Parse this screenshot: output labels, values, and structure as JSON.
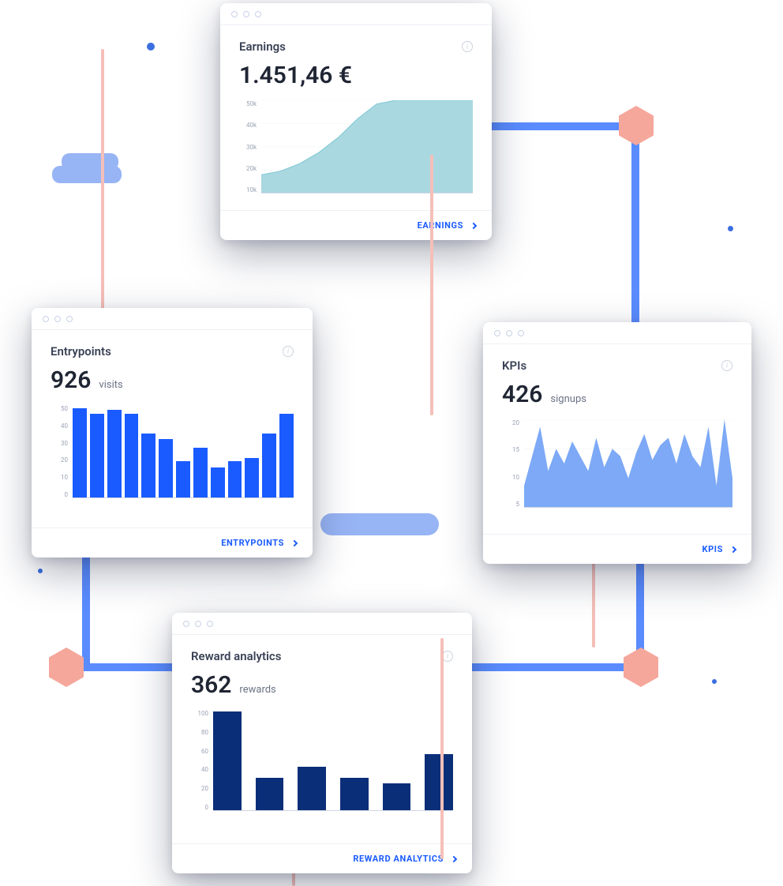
{
  "decor": {
    "connector_color": "#5a8cff",
    "pink_line_color": "#f5bfb8",
    "hex_color": "#f5a79b",
    "dot_color": "#3b6fe0",
    "pill_color": "#97b4f4"
  },
  "cards": {
    "earnings": {
      "title": "Earnings",
      "value": "1.451,46 €",
      "link_label": "EARNINGS",
      "chart": {
        "type": "area",
        "fill_color": "#a9d8e0",
        "stroke_color": "#7fc7d4",
        "background_color": "#ffffff",
        "grid_color": "#eef0f4",
        "ylabels": [
          "50k",
          "40k",
          "30k",
          "20k",
          "10k"
        ],
        "ylim": [
          0,
          50
        ],
        "points": [
          10,
          12,
          16,
          22,
          30,
          40,
          48,
          50,
          50,
          50,
          50,
          50
        ]
      }
    },
    "entrypoints": {
      "title": "Entrypoints",
      "value": "926",
      "unit": "visits",
      "link_label": "ENTRYPOINTS",
      "chart": {
        "type": "bar",
        "bar_color": "#1a5bff",
        "grid_color": "#eef0f4",
        "ylabels": [
          "50",
          "40",
          "30",
          "20",
          "10",
          "0"
        ],
        "ylim": [
          0,
          55
        ],
        "values": [
          53,
          50,
          52,
          50,
          38,
          35,
          22,
          30,
          18,
          22,
          24,
          38,
          50
        ]
      }
    },
    "kpis": {
      "title": "KPIs",
      "value": "426",
      "unit": "signups",
      "link_label": "KPIs",
      "chart": {
        "type": "area",
        "fill_color": "#6fa0f5",
        "stroke_color": "#5a8cff",
        "grid_color": "#eef0f4",
        "ylabels": [
          "20",
          "15",
          "10",
          "5"
        ],
        "ylim": [
          0,
          24
        ],
        "points": [
          6,
          14,
          22,
          10,
          16,
          12,
          18,
          14,
          10,
          19,
          11,
          16,
          14,
          8,
          15,
          20,
          13,
          17,
          19,
          12,
          20,
          14,
          11,
          22,
          6,
          24,
          8
        ]
      }
    },
    "rewards": {
      "title": "Reward analytics",
      "value": "362",
      "unit": "rewards",
      "link_label": "REWARD ANALYTICS",
      "chart": {
        "type": "bar",
        "bar_color": "#0b2e78",
        "grid_color": "#eef0f4",
        "ylabels": [
          "100",
          "80",
          "60",
          "40",
          "20",
          "0"
        ],
        "ylim": [
          0,
          110
        ],
        "values": [
          108,
          36,
          48,
          36,
          30,
          62
        ],
        "bar_gap_ratio": 0.35
      }
    }
  }
}
